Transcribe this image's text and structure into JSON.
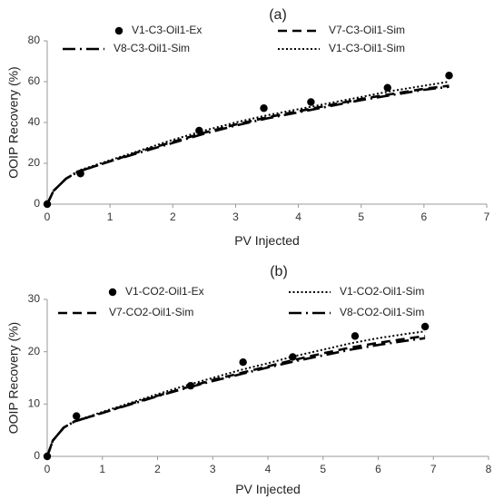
{
  "chart_data": [
    {
      "type": "scatter",
      "title": "(a)",
      "xlabel": "PV Injected",
      "ylabel": "OOIP Recovery (%)",
      "xlim": [
        0,
        7
      ],
      "ylim": [
        0,
        80
      ],
      "xticks": [
        0,
        1,
        2,
        3,
        4,
        5,
        6,
        7
      ],
      "yticks": [
        0,
        20,
        40,
        60,
        80
      ],
      "grid": false,
      "legend_position": "top",
      "series": [
        {
          "name": "V1-C3-Oil1-Ex",
          "style": "markers",
          "x": [
            0,
            0.53,
            2.42,
            3.45,
            4.2,
            5.42,
            6.4
          ],
          "y": [
            0,
            15,
            36,
            47,
            50,
            57,
            63
          ]
        },
        {
          "name": "V7-C3-Oil1-Sim",
          "style": "dashed",
          "x": [
            0,
            0.1,
            0.3,
            0.5,
            0.75,
            1,
            1.5,
            2,
            2.5,
            3,
            3.5,
            4,
            4.5,
            5,
            5.5,
            6,
            6.4
          ],
          "y": [
            0,
            6.5,
            12.5,
            16,
            18.5,
            21,
            26,
            30.5,
            35,
            39,
            42.5,
            45.5,
            48.5,
            51.5,
            54,
            56.5,
            58
          ]
        },
        {
          "name": "V8-C3-Oil1-Sim",
          "style": "dash-dot",
          "x": [
            0,
            0.1,
            0.3,
            0.5,
            0.75,
            1,
            1.5,
            2,
            2.5,
            3,
            3.5,
            4,
            4.5,
            5,
            5.5,
            6,
            6.4
          ],
          "y": [
            0,
            6.5,
            12.5,
            16,
            18.5,
            21,
            25.5,
            30,
            34.5,
            38.5,
            42,
            45,
            48,
            51,
            53.5,
            56,
            57.5
          ]
        },
        {
          "name": "V1-C3-Oil1-Sim",
          "style": "dotted",
          "x": [
            0,
            0.1,
            0.3,
            0.5,
            0.75,
            1,
            1.5,
            2,
            2.5,
            3,
            3.5,
            4,
            4.5,
            5,
            5.5,
            6,
            6.4
          ],
          "y": [
            0,
            6.5,
            12.5,
            16.5,
            19,
            21.5,
            26.5,
            31.5,
            36,
            40,
            43.5,
            46.5,
            49.5,
            52.5,
            55.5,
            58,
            60
          ]
        }
      ]
    },
    {
      "type": "scatter",
      "title": "(b)",
      "xlabel": "PV Injected",
      "ylabel": "OOIP Recovery (%)",
      "xlim": [
        0,
        8
      ],
      "ylim": [
        0,
        30
      ],
      "xticks": [
        0,
        1,
        2,
        3,
        4,
        5,
        6,
        7,
        8
      ],
      "yticks": [
        0,
        10,
        20,
        30
      ],
      "grid": false,
      "legend_position": "top",
      "series": [
        {
          "name": "V1-CO2-Oil1-Ex",
          "style": "markers",
          "x": [
            0,
            0.53,
            2.6,
            3.55,
            4.45,
            5.58,
            6.85
          ],
          "y": [
            0,
            7.7,
            13.5,
            18,
            19,
            23,
            24.8
          ]
        },
        {
          "name": "V1-CO2-Oil1-Sim",
          "style": "dotted",
          "x": [
            0,
            0.1,
            0.3,
            0.5,
            0.75,
            1,
            1.5,
            2,
            2.5,
            3,
            3.5,
            4,
            4.5,
            5,
            5.5,
            6,
            6.5,
            6.85
          ],
          "y": [
            0,
            3,
            5.5,
            6.8,
            7.6,
            8.5,
            10.2,
            11.9,
            13.5,
            15,
            16.5,
            17.8,
            19.2,
            20.4,
            21.6,
            22.6,
            23.4,
            23.9
          ]
        },
        {
          "name": "V7-CO2-Oil1-Sim",
          "style": "dashed",
          "x": [
            0,
            0.1,
            0.3,
            0.5,
            0.75,
            1,
            1.5,
            2,
            2.5,
            3,
            3.5,
            4,
            4.5,
            5,
            5.5,
            6,
            6.5,
            6.85
          ],
          "y": [
            0,
            3,
            5.5,
            6.7,
            7.5,
            8.3,
            10,
            11.6,
            13.1,
            14.6,
            15.9,
            17.2,
            18.5,
            19.7,
            20.8,
            21.7,
            22.5,
            23
          ]
        },
        {
          "name": "V8-CO2-Oil1-Sim",
          "style": "dash-dot",
          "x": [
            0,
            0.1,
            0.3,
            0.5,
            0.75,
            1,
            1.5,
            2,
            2.5,
            3,
            3.5,
            4,
            4.5,
            5,
            5.5,
            6,
            6.5,
            6.85
          ],
          "y": [
            0,
            3,
            5.5,
            6.7,
            7.5,
            8.3,
            9.9,
            11.5,
            13,
            14.4,
            15.7,
            17,
            18.2,
            19.3,
            20.4,
            21.3,
            22.1,
            22.6
          ]
        }
      ]
    }
  ]
}
